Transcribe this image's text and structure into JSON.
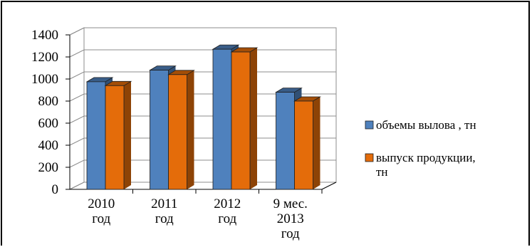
{
  "chart_data": {
    "type": "bar",
    "title": "",
    "xlabel": "",
    "ylabel": "",
    "ylim": [
      0,
      1400
    ],
    "yticks": [
      0,
      200,
      400,
      600,
      800,
      1000,
      1200,
      1400
    ],
    "grid": true,
    "legend_position": "right",
    "style": "3d-clustered-column",
    "categories": [
      [
        "2010",
        "год"
      ],
      [
        "2011",
        "год"
      ],
      [
        "2012",
        "год"
      ],
      [
        "9 мес.",
        "2013",
        "год"
      ]
    ],
    "series": [
      {
        "name": "объемы вылова , тн",
        "name_lines": [
          "объемы вылова , тн"
        ],
        "color": "#4F81BD",
        "values": [
          975,
          1080,
          1270,
          880
        ]
      },
      {
        "name": "выпуск продукции, тн",
        "name_lines": [
          "выпуск продукции,",
          "тн"
        ],
        "color": "#E46C0A",
        "values": [
          940,
          1040,
          1245,
          800
        ]
      }
    ]
  }
}
